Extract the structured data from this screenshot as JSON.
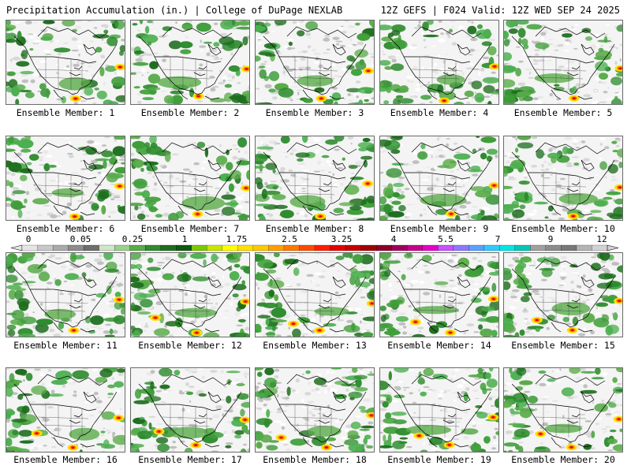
{
  "header": {
    "left": "Precipitation Accumulation (in.) | College of DuPage NEXLAB",
    "right": "12Z GEFS | F024 Valid: 12Z WED SEP 24 2025"
  },
  "panels": [
    {
      "label": "Ensemble Member: 1"
    },
    {
      "label": "Ensemble Member: 2"
    },
    {
      "label": "Ensemble Member: 3"
    },
    {
      "label": "Ensemble Member: 4"
    },
    {
      "label": "Ensemble Member: 5"
    },
    {
      "label": "Ensemble Member: 6"
    },
    {
      "label": "Ensemble Member: 7"
    },
    {
      "label": "Ensemble Member: 8"
    },
    {
      "label": "Ensemble Member: 9"
    },
    {
      "label": "Ensemble Member: 10"
    },
    {
      "label": "Ensemble Member: 11"
    },
    {
      "label": "Ensemble Member: 12"
    },
    {
      "label": "Ensemble Member: 13"
    },
    {
      "label": "Ensemble Member: 14"
    },
    {
      "label": "Ensemble Member: 15"
    },
    {
      "label": "Ensemble Member: 16"
    },
    {
      "label": "Ensemble Member: 17"
    },
    {
      "label": "Ensemble Member: 18"
    },
    {
      "label": "Ensemble Member: 19"
    },
    {
      "label": "Ensemble Member: 20"
    }
  ],
  "colorbar": {
    "ticks": [
      "0",
      "0.05",
      "0.25",
      "1",
      "1.75",
      "2.5",
      "3.25",
      "4",
      "5.5",
      "7",
      "9",
      "12"
    ],
    "colors": [
      "#e6e6e6",
      "#c8c8c8",
      "#aaaaaa",
      "#8c8c8c",
      "#6e6e6e",
      "#cfe6c8",
      "#9ccf8f",
      "#5aab4a",
      "#2e8b2e",
      "#1f6e1f",
      "#0f5a0f",
      "#7cc800",
      "#c8e600",
      "#ffff00",
      "#ffe100",
      "#ffc800",
      "#ffa000",
      "#ff7800",
      "#ff4b00",
      "#ff1e00",
      "#e60000",
      "#c80000",
      "#a00000",
      "#8c0028",
      "#a0005a",
      "#c8008c",
      "#e600c8",
      "#c850ff",
      "#8c78ff",
      "#5aa0ff",
      "#32c8ff",
      "#00e6e6",
      "#00c8b4",
      "#a0a0a0",
      "#8c8c8c",
      "#787878",
      "#b4b4b4",
      "#d2d2d2"
    ]
  }
}
